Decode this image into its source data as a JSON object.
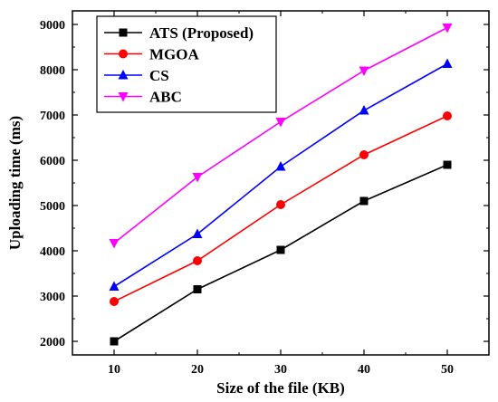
{
  "chart_data": {
    "type": "line",
    "title": "",
    "xlabel": "Size of the file (KB)",
    "ylabel": "Uploading time (ms)",
    "x": [
      10,
      20,
      30,
      40,
      50
    ],
    "xticks": [
      10,
      20,
      30,
      40,
      50
    ],
    "yticks": [
      2000,
      3000,
      4000,
      5000,
      6000,
      7000,
      8000,
      9000
    ],
    "xlim": [
      5,
      55
    ],
    "ylim": [
      1700,
      9300
    ],
    "grid": false,
    "legend_position": "top-left",
    "series": [
      {
        "name": "ATS (Proposed)",
        "color": "#000000",
        "marker": "square",
        "values": [
          2000,
          3150,
          4020,
          5100,
          5900
        ]
      },
      {
        "name": "MGOA",
        "color": "#ff0000",
        "marker": "circle",
        "values": [
          2880,
          3780,
          5020,
          6120,
          6980
        ]
      },
      {
        "name": "CS",
        "color": "#0000ff",
        "marker": "triangle-up",
        "values": [
          3210,
          4370,
          5860,
          7100,
          8130
        ]
      },
      {
        "name": "ABC",
        "color": "#ff00ff",
        "marker": "triangle-down",
        "values": [
          4170,
          5630,
          6850,
          7980,
          8930
        ]
      }
    ]
  }
}
